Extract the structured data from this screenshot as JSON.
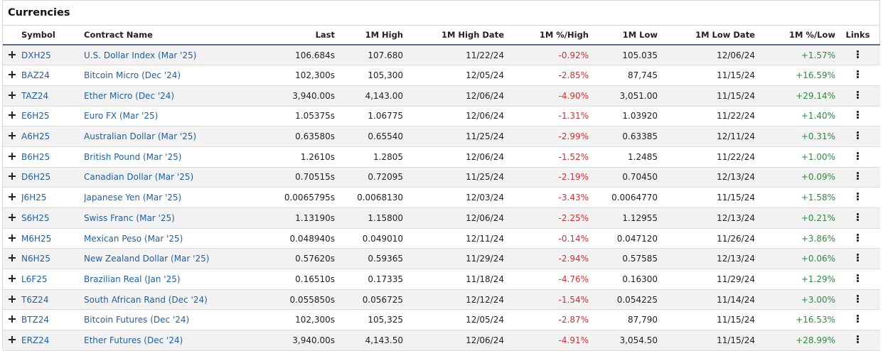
{
  "title": "Currencies",
  "columns": {
    "symbol": "Symbol",
    "name": "Contract Name",
    "last": "Last",
    "high": "1M High",
    "high_date": "1M High Date",
    "pct_high": "1M %/High",
    "low": "1M Low",
    "low_date": "1M Low Date",
    "pct_low": "1M %/Low",
    "links": "Links"
  },
  "icons": {
    "expand": "plus-icon",
    "links": "kebab-menu-icon"
  },
  "colors": {
    "link": "#1f5fa8",
    "negative": "#d32f2f",
    "positive": "#2e8b3e",
    "header_rule": "#5b6e8c"
  },
  "rows": [
    {
      "symbol": "DXH25",
      "name": "U.S. Dollar Index (Mar '25)",
      "last": "106.684s",
      "high": "107.680",
      "high_date": "11/22/24",
      "pct_high": "-0.92%",
      "low": "105.035",
      "low_date": "12/06/24",
      "pct_low": "+1.57%"
    },
    {
      "symbol": "BAZ24",
      "name": "Bitcoin Micro (Dec '24)",
      "last": "102,300s",
      "high": "105,300",
      "high_date": "12/05/24",
      "pct_high": "-2.85%",
      "low": "87,745",
      "low_date": "11/15/24",
      "pct_low": "+16.59%"
    },
    {
      "symbol": "TAZ24",
      "name": "Ether Micro (Dec '24)",
      "last": "3,940.00s",
      "high": "4,143.00",
      "high_date": "12/06/24",
      "pct_high": "-4.90%",
      "low": "3,051.00",
      "low_date": "11/15/24",
      "pct_low": "+29.14%"
    },
    {
      "symbol": "E6H25",
      "name": "Euro FX (Mar '25)",
      "last": "1.05375s",
      "high": "1.06775",
      "high_date": "12/06/24",
      "pct_high": "-1.31%",
      "low": "1.03920",
      "low_date": "11/22/24",
      "pct_low": "+1.40%"
    },
    {
      "symbol": "A6H25",
      "name": "Australian Dollar (Mar '25)",
      "last": "0.63580s",
      "high": "0.65540",
      "high_date": "11/25/24",
      "pct_high": "-2.99%",
      "low": "0.63385",
      "low_date": "12/11/24",
      "pct_low": "+0.31%"
    },
    {
      "symbol": "B6H25",
      "name": "British Pound (Mar '25)",
      "last": "1.2610s",
      "high": "1.2805",
      "high_date": "12/06/24",
      "pct_high": "-1.52%",
      "low": "1.2485",
      "low_date": "11/22/24",
      "pct_low": "+1.00%"
    },
    {
      "symbol": "D6H25",
      "name": "Canadian Dollar (Mar '25)",
      "last": "0.70515s",
      "high": "0.72095",
      "high_date": "11/25/24",
      "pct_high": "-2.19%",
      "low": "0.70450",
      "low_date": "12/13/24",
      "pct_low": "+0.09%"
    },
    {
      "symbol": "J6H25",
      "name": "Japanese Yen (Mar '25)",
      "last": "0.0065795s",
      "high": "0.0068130",
      "high_date": "12/03/24",
      "pct_high": "-3.43%",
      "low": "0.0064770",
      "low_date": "11/15/24",
      "pct_low": "+1.58%"
    },
    {
      "symbol": "S6H25",
      "name": "Swiss Franc (Mar '25)",
      "last": "1.13190s",
      "high": "1.15800",
      "high_date": "12/06/24",
      "pct_high": "-2.25%",
      "low": "1.12955",
      "low_date": "12/13/24",
      "pct_low": "+0.21%"
    },
    {
      "symbol": "M6H25",
      "name": "Mexican Peso (Mar '25)",
      "last": "0.048940s",
      "high": "0.049010",
      "high_date": "12/11/24",
      "pct_high": "-0.14%",
      "low": "0.047120",
      "low_date": "11/26/24",
      "pct_low": "+3.86%"
    },
    {
      "symbol": "N6H25",
      "name": "New Zealand Dollar (Mar '25)",
      "last": "0.57620s",
      "high": "0.59365",
      "high_date": "11/29/24",
      "pct_high": "-2.94%",
      "low": "0.57585",
      "low_date": "12/13/24",
      "pct_low": "+0.06%"
    },
    {
      "symbol": "L6F25",
      "name": "Brazilian Real (Jan '25)",
      "last": "0.16510s",
      "high": "0.17335",
      "high_date": "11/18/24",
      "pct_high": "-4.76%",
      "low": "0.16300",
      "low_date": "11/29/24",
      "pct_low": "+1.29%"
    },
    {
      "symbol": "T6Z24",
      "name": "South African Rand (Dec '24)",
      "last": "0.055850s",
      "high": "0.056725",
      "high_date": "12/12/24",
      "pct_high": "-1.54%",
      "low": "0.054225",
      "low_date": "11/14/24",
      "pct_low": "+3.00%"
    },
    {
      "symbol": "BTZ24",
      "name": "Bitcoin Futures (Dec '24)",
      "last": "102,300s",
      "high": "105,325",
      "high_date": "12/05/24",
      "pct_high": "-2.87%",
      "low": "87,790",
      "low_date": "11/15/24",
      "pct_low": "+16.53%"
    },
    {
      "symbol": "ERZ24",
      "name": "Ether Futures (Dec '24)",
      "last": "3,940.00s",
      "high": "4,143.50",
      "high_date": "12/06/24",
      "pct_high": "-4.91%",
      "low": "3,054.50",
      "low_date": "11/15/24",
      "pct_low": "+28.99%"
    }
  ]
}
